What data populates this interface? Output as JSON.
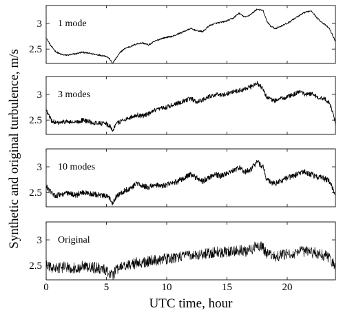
{
  "chart_data": {
    "type": "line",
    "ylabel": "Synthetic and original turbulence, m/s",
    "xlabel": "UTC time, hour",
    "xlim": [
      0,
      24
    ],
    "xticks": [
      0,
      5,
      10,
      15,
      20
    ],
    "ylim": [
      2.22,
      3.35
    ],
    "yticks": [
      2.5,
      3
    ],
    "grid": false,
    "legend": "none",
    "panels": [
      {
        "label": "1 mode",
        "noise": 0.015,
        "x": [
          0,
          0.4,
          0.8,
          1.2,
          1.6,
          2,
          2.5,
          3,
          3.5,
          4,
          4.5,
          5,
          5.3,
          5.5,
          5.8,
          6.2,
          6.6,
          7,
          7.5,
          8,
          8.5,
          9,
          9.5,
          10,
          10.5,
          11,
          11.5,
          12,
          12.5,
          13,
          13.5,
          14,
          14.5,
          15,
          15.5,
          16,
          16.5,
          17,
          17.5,
          18,
          18.3,
          18.6,
          19,
          19.5,
          20,
          20.5,
          21,
          21.5,
          22,
          22.5,
          23,
          23.5,
          24
        ],
        "y": [
          2.72,
          2.56,
          2.45,
          2.4,
          2.38,
          2.39,
          2.41,
          2.44,
          2.42,
          2.4,
          2.38,
          2.36,
          2.3,
          2.22,
          2.32,
          2.45,
          2.52,
          2.55,
          2.6,
          2.62,
          2.58,
          2.65,
          2.7,
          2.73,
          2.75,
          2.8,
          2.85,
          2.9,
          2.86,
          2.84,
          2.95,
          3.0,
          3.02,
          3.05,
          3.1,
          3.2,
          3.12,
          3.18,
          3.28,
          3.25,
          3.05,
          2.95,
          2.9,
          2.95,
          3.0,
          3.08,
          3.15,
          3.22,
          3.25,
          3.1,
          3.0,
          2.9,
          2.65
        ]
      },
      {
        "label": "3 modes",
        "noise": 0.045,
        "x": [
          0,
          0.4,
          0.8,
          1.2,
          1.6,
          2,
          2.5,
          3,
          3.5,
          4,
          4.5,
          5,
          5.3,
          5.5,
          5.8,
          6.2,
          6.6,
          7,
          7.5,
          8,
          8.5,
          9,
          9.5,
          10,
          10.5,
          11,
          11.5,
          12,
          12.5,
          13,
          13.5,
          14,
          14.5,
          15,
          15.5,
          16,
          16.5,
          17,
          17.5,
          18,
          18.3,
          18.6,
          19,
          19.5,
          20,
          20.5,
          21,
          21.5,
          22,
          22.5,
          23,
          23.5,
          24
        ],
        "y": [
          2.7,
          2.5,
          2.44,
          2.45,
          2.47,
          2.46,
          2.45,
          2.5,
          2.47,
          2.45,
          2.44,
          2.42,
          2.38,
          2.3,
          2.42,
          2.48,
          2.52,
          2.55,
          2.6,
          2.58,
          2.62,
          2.68,
          2.72,
          2.75,
          2.8,
          2.84,
          2.88,
          2.92,
          2.85,
          2.9,
          2.95,
          3.0,
          2.98,
          3.02,
          3.05,
          3.08,
          3.1,
          3.15,
          3.22,
          3.1,
          2.95,
          2.9,
          2.88,
          2.92,
          2.95,
          3.0,
          3.05,
          3.0,
          3.02,
          2.95,
          2.92,
          2.85,
          2.45
        ]
      },
      {
        "label": "10 modes",
        "noise": 0.055,
        "x": [
          0,
          0.4,
          0.8,
          1.2,
          1.6,
          2,
          2.5,
          3,
          3.5,
          4,
          4.5,
          5,
          5.3,
          5.5,
          5.8,
          6.2,
          6.6,
          7,
          7.5,
          8,
          8.5,
          9,
          9.5,
          10,
          10.5,
          11,
          11.5,
          12,
          12.5,
          13,
          13.5,
          14,
          14.5,
          15,
          15.5,
          16,
          16.5,
          17,
          17.5,
          18,
          18.3,
          18.6,
          19,
          19.5,
          20,
          20.5,
          21,
          21.5,
          22,
          22.5,
          23,
          23.5,
          24
        ],
        "y": [
          2.62,
          2.5,
          2.44,
          2.46,
          2.48,
          2.47,
          2.45,
          2.5,
          2.48,
          2.46,
          2.44,
          2.42,
          2.38,
          2.3,
          2.42,
          2.48,
          2.55,
          2.58,
          2.68,
          2.62,
          2.6,
          2.65,
          2.62,
          2.65,
          2.68,
          2.72,
          2.8,
          2.85,
          2.78,
          2.72,
          2.8,
          2.85,
          2.82,
          2.88,
          2.92,
          2.98,
          2.9,
          2.95,
          3.1,
          3.0,
          2.75,
          2.7,
          2.68,
          2.72,
          2.78,
          2.82,
          2.88,
          2.9,
          2.85,
          2.8,
          2.78,
          2.72,
          2.45
        ]
      },
      {
        "label": "Original",
        "noise": 0.11,
        "x": [
          0,
          0.4,
          0.8,
          1.2,
          1.6,
          2,
          2.5,
          3,
          3.5,
          4,
          4.5,
          5,
          5.3,
          5.5,
          5.8,
          6.2,
          6.6,
          7,
          7.5,
          8,
          8.5,
          9,
          9.5,
          10,
          10.5,
          11,
          11.5,
          12,
          12.5,
          13,
          13.5,
          14,
          14.5,
          15,
          15.5,
          16,
          16.5,
          17,
          17.5,
          18,
          18.3,
          18.6,
          19,
          19.5,
          20,
          20.5,
          21,
          21.5,
          22,
          22.5,
          23,
          23.5,
          24
        ],
        "y": [
          2.52,
          2.45,
          2.44,
          2.46,
          2.47,
          2.46,
          2.45,
          2.48,
          2.47,
          2.46,
          2.44,
          2.4,
          2.35,
          2.3,
          2.4,
          2.46,
          2.5,
          2.52,
          2.55,
          2.55,
          2.58,
          2.6,
          2.62,
          2.63,
          2.64,
          2.66,
          2.7,
          2.72,
          2.7,
          2.72,
          2.74,
          2.76,
          2.75,
          2.76,
          2.78,
          2.8,
          2.78,
          2.82,
          2.88,
          2.85,
          2.72,
          2.7,
          2.68,
          2.7,
          2.72,
          2.74,
          2.76,
          2.78,
          2.76,
          2.74,
          2.7,
          2.66,
          2.45
        ]
      }
    ]
  }
}
